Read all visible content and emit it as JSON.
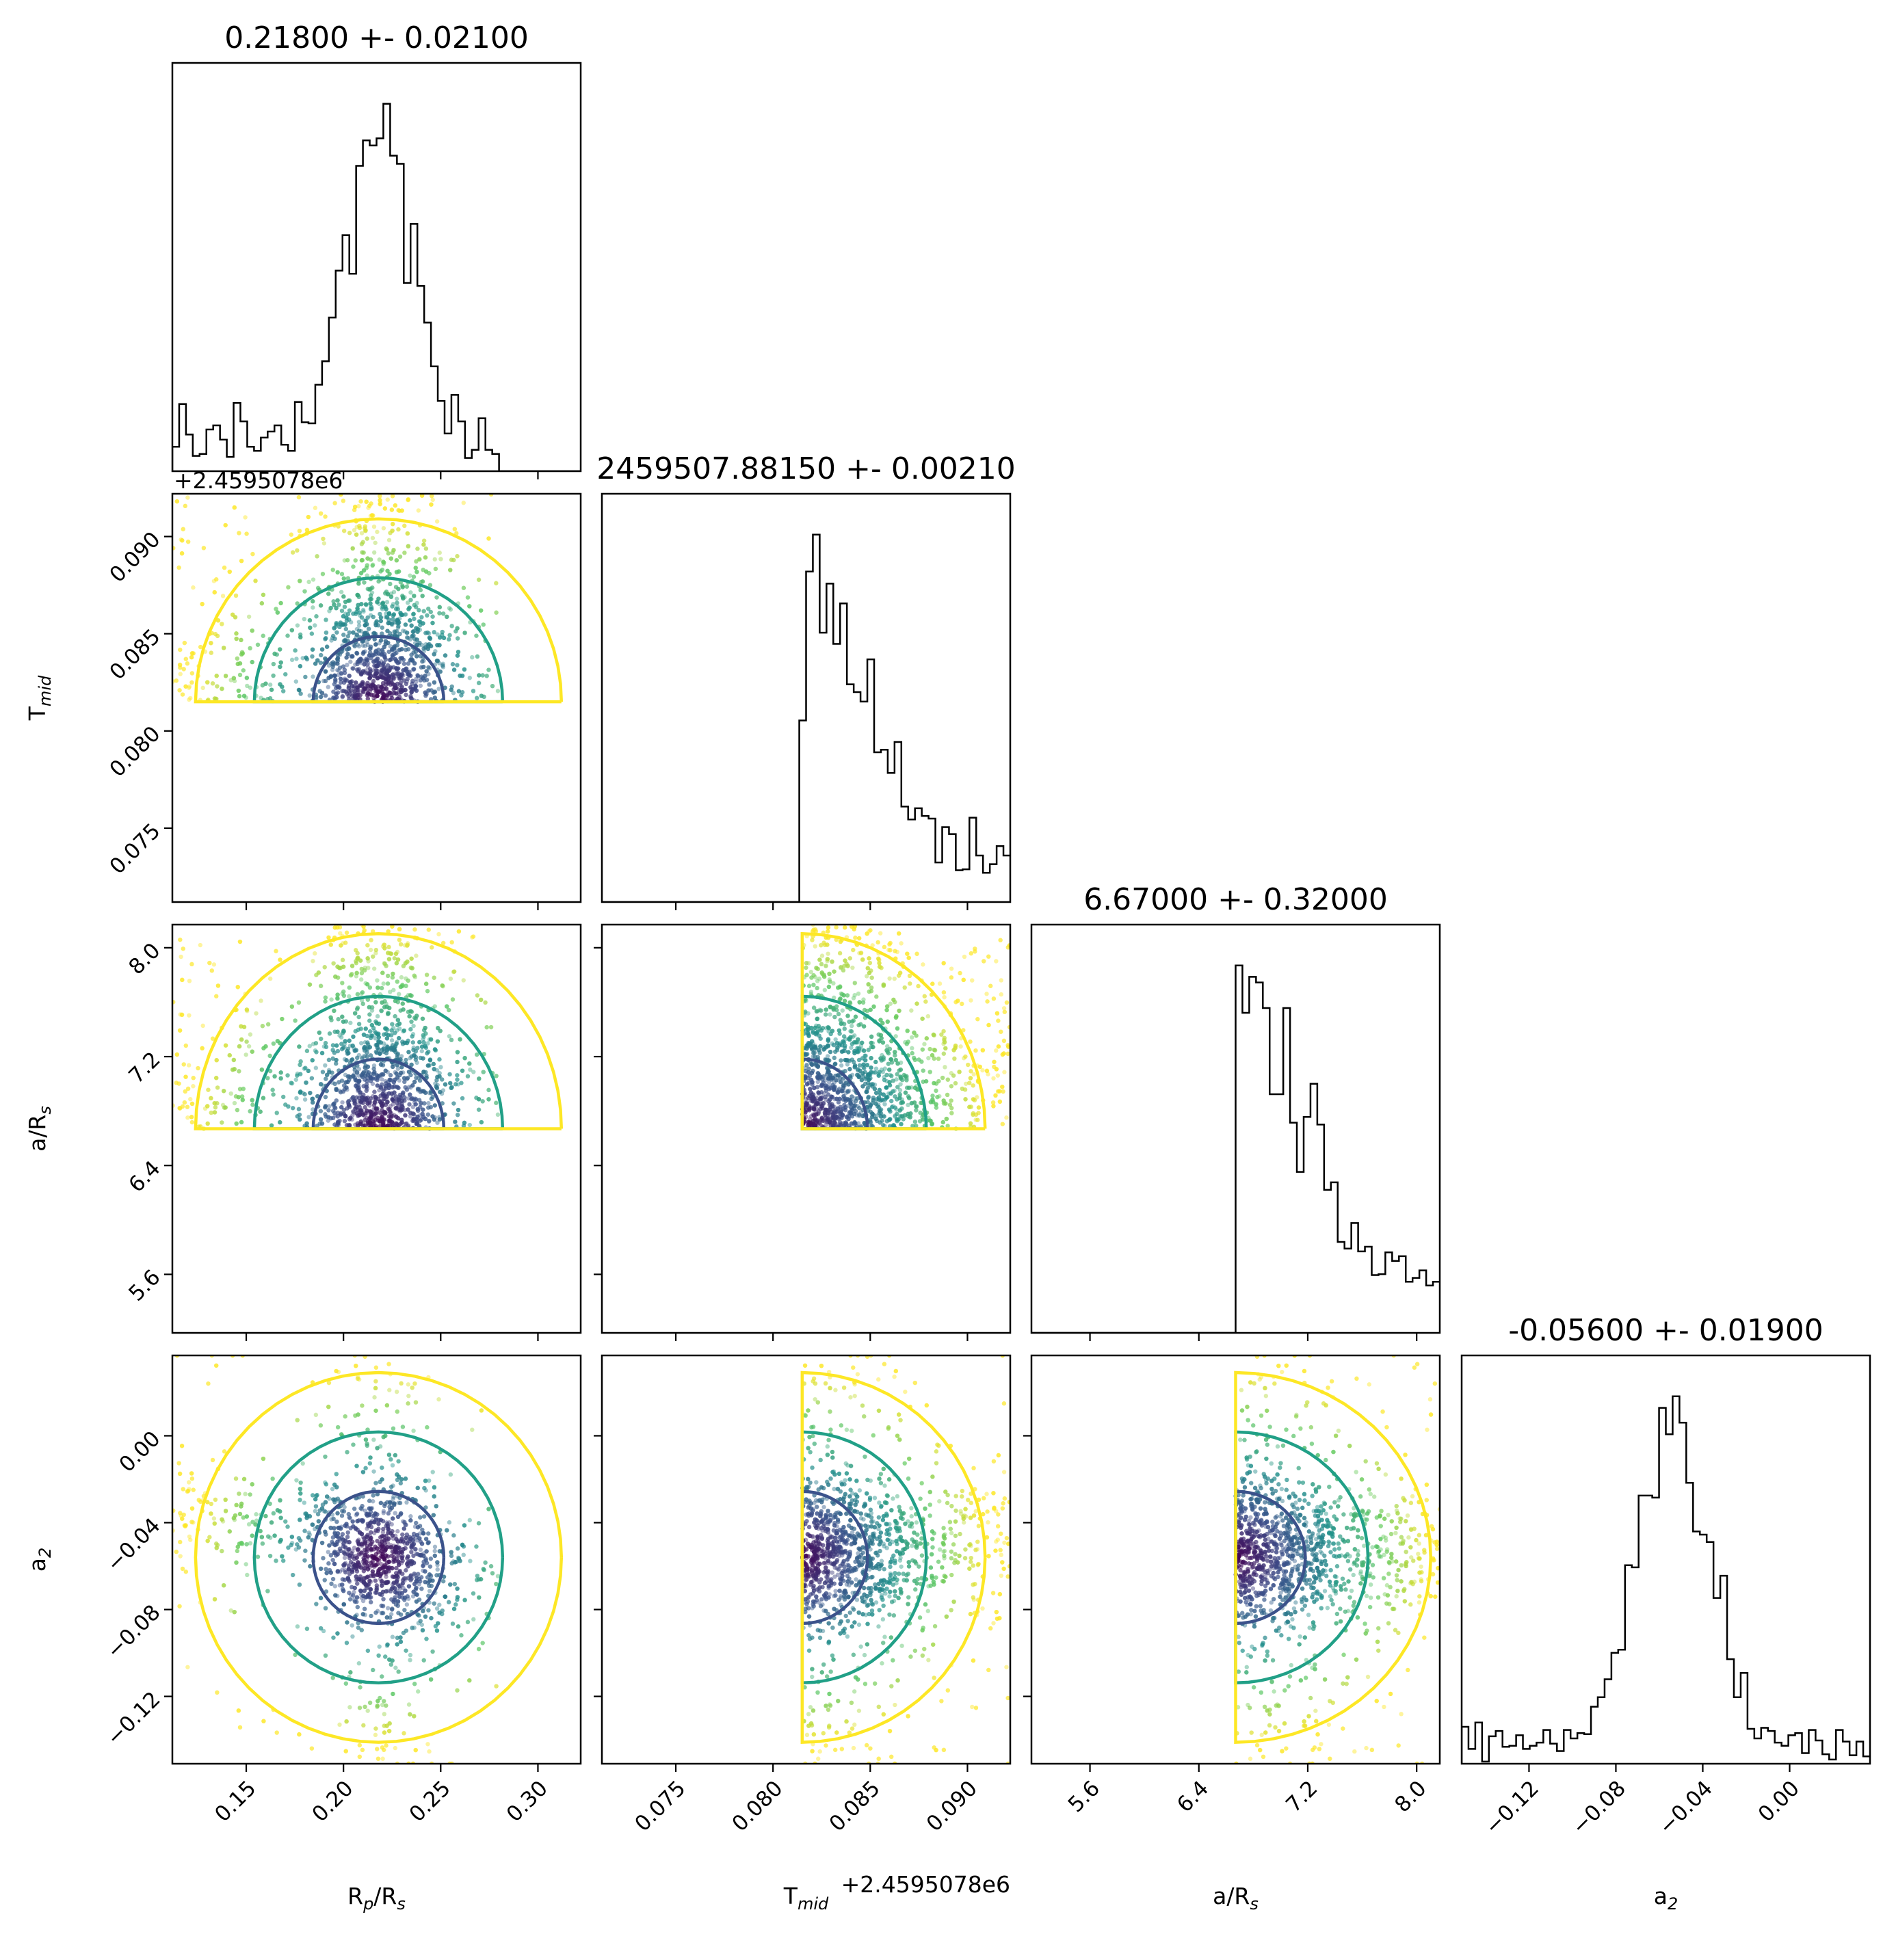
{
  "chart_data": {
    "type": "corner",
    "parameters": [
      {
        "name": "R_p/R_s",
        "axis_label": {
          "base": "R",
          "sub": "p",
          "post": "/R",
          "sub2": "s"
        },
        "range": [
          0.112,
          0.322
        ],
        "ticks": [
          0.15,
          0.2,
          0.25,
          0.3
        ],
        "tick_labels": [
          "0.15",
          "0.20",
          "0.25",
          "0.30"
        ]
      },
      {
        "name": "T_mid",
        "axis_label": {
          "base": "T",
          "sub": "mid",
          "post": "",
          "sub2": ""
        },
        "range": [
          0.0712,
          0.0922
        ],
        "ticks": [
          0.075,
          0.08,
          0.085,
          0.09
        ],
        "tick_labels": [
          "0.075",
          "0.080",
          "0.085",
          "0.090"
        ],
        "offset": "+2.4595078e6"
      },
      {
        "name": "a/R_s",
        "axis_label": {
          "base": "a/R",
          "sub": "s",
          "post": "",
          "sub2": ""
        },
        "range": [
          5.17,
          8.17
        ],
        "ticks": [
          5.6,
          6.4,
          7.2,
          8.0
        ],
        "tick_labels": [
          "5.6",
          "6.4",
          "7.2",
          "8.0"
        ]
      },
      {
        "name": "a_2",
        "axis_label": {
          "base": "a",
          "sub": "2",
          "post": "",
          "sub2": ""
        },
        "range": [
          -0.151,
          0.037
        ],
        "ticks": [
          -0.12,
          -0.08,
          -0.04,
          0.0
        ],
        "tick_labels": [
          "−0.12",
          "−0.08",
          "−0.04",
          "0.00"
        ]
      }
    ],
    "titles": [
      "0.21800 +- 0.02100",
      "2459507.88150 +- 0.00210",
      "6.67000 +- 0.32000",
      "-0.05600 +- 0.01900"
    ],
    "posterior": {
      "mean": [
        0.218,
        0.0815,
        6.67,
        -0.056
      ],
      "sigma": [
        0.021,
        0.0021,
        0.32,
        0.019
      ],
      "lower_cut": [
        null,
        0.0815,
        6.67,
        null
      ],
      "bounds": [
        [
          0.112,
          0.28
        ],
        [
          0.0815,
          0.0922
        ],
        [
          6.67,
          8.17
        ],
        [
          -0.151,
          0.037
        ]
      ]
    },
    "histogram_type": "step",
    "contour_colors": [
      "#3b528b",
      "#21a087",
      "#fde725"
    ],
    "point_colormap": "viridis"
  }
}
